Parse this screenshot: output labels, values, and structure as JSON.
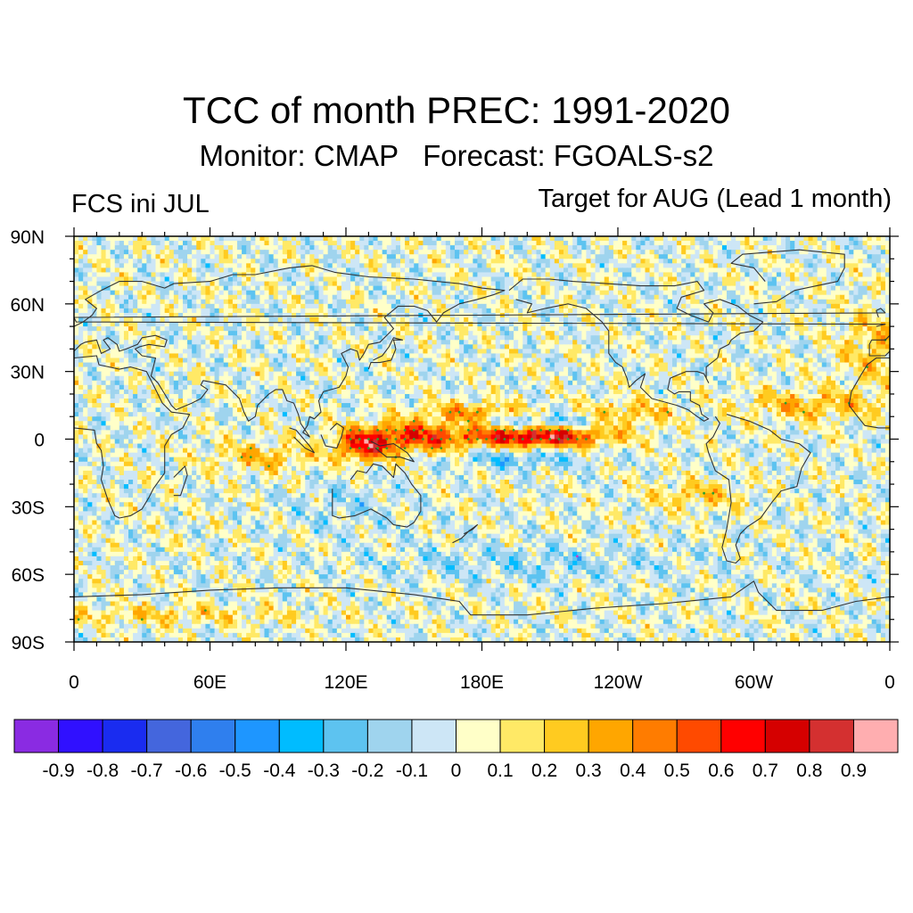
{
  "title": "TCC of month PREC: 1991-2020",
  "subtitle": "Monitor: CMAP   Forecast: FGOALS-s2",
  "left_label": "FCS ini JUL",
  "right_label": "Target for AUG (Lead 1 month)",
  "map": {
    "projection": "cylindrical-equidistant",
    "lon_range": [
      0,
      360
    ],
    "lat_range": [
      -90,
      90
    ],
    "y_ticks": [
      "90N",
      "60N",
      "30N",
      "0",
      "30S",
      "60S",
      "90S"
    ],
    "x_ticks": [
      "0",
      "60E",
      "120E",
      "180E",
      "120W",
      "60W",
      "0"
    ],
    "stipple_colors": {
      "positive": "#2ea02e",
      "negative": "#c83cc8"
    }
  },
  "colorbar": {
    "colors": [
      "#8a2be2",
      "#3010ff",
      "#1a2cf0",
      "#4466dd",
      "#2f7fee",
      "#1e96ff",
      "#00bcff",
      "#5dc3f0",
      "#9fd4ee",
      "#cde6f6",
      "#ffffc8",
      "#ffe966",
      "#ffcb20",
      "#ffa600",
      "#ff7c00",
      "#ff4a00",
      "#ff0000",
      "#d50000",
      "#d43030",
      "#ffaeb0"
    ],
    "labels": [
      "-0.9",
      "-0.8",
      "-0.7",
      "-0.6",
      "-0.5",
      "-0.4",
      "-0.3",
      "-0.2",
      "-0.1",
      "0",
      "0.1",
      "0.2",
      "0.3",
      "0.4",
      "0.5",
      "0.6",
      "0.7",
      "0.8",
      "0.9"
    ]
  }
}
